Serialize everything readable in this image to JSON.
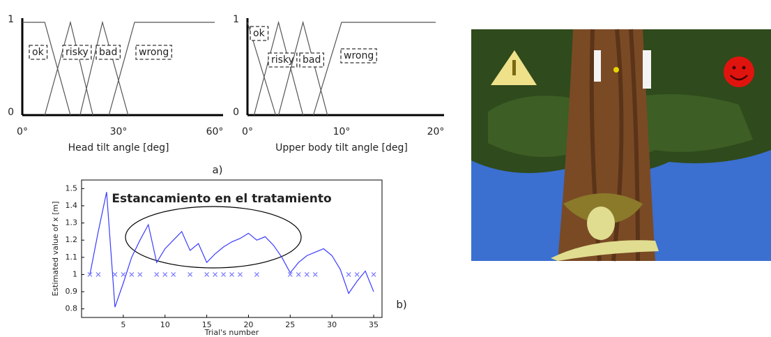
{
  "chart_data": [
    {
      "type": "line",
      "xlabel": "Head tilt angle [deg]",
      "xlim": [
        0,
        60
      ],
      "ylim": [
        0,
        1
      ],
      "xticks": [
        {
          "value": 0,
          "label": "0°"
        },
        {
          "value": 30,
          "label": "30°"
        },
        {
          "value": 60,
          "label": "60°"
        }
      ],
      "yticks": [
        0,
        1
      ],
      "series": [
        {
          "name": "ok",
          "color": "#555555",
          "x": [
            0,
            7,
            15
          ],
          "values": [
            1,
            1,
            0
          ]
        },
        {
          "name": "risky",
          "color": "#555555",
          "x": [
            7,
            15,
            22
          ],
          "values": [
            0,
            1,
            0
          ]
        },
        {
          "name": "bad",
          "color": "#555555",
          "x": [
            18,
            25,
            33
          ],
          "values": [
            0,
            1,
            0
          ]
        },
        {
          "name": "wrong",
          "color": "#555555",
          "x": [
            27,
            35,
            60
          ],
          "values": [
            0,
            1,
            1
          ]
        }
      ]
    },
    {
      "type": "line",
      "xlabel": "Upper body tilt angle [deg]",
      "xlim": [
        0,
        20
      ],
      "ylim": [
        0,
        1
      ],
      "xticks": [
        {
          "value": 0,
          "label": "0°"
        },
        {
          "value": 10,
          "label": "10°"
        },
        {
          "value": 20,
          "label": "20°"
        }
      ],
      "yticks": [
        0,
        1
      ],
      "series": [
        {
          "name": "ok",
          "color": "#555555",
          "x": [
            0,
            3
          ],
          "values": [
            1,
            0
          ]
        },
        {
          "name": "risky",
          "color": "#555555",
          "x": [
            0.7,
            3.3,
            5.9
          ],
          "values": [
            0,
            1,
            0
          ]
        },
        {
          "name": "bad",
          "color": "#555555",
          "x": [
            3.3,
            5.9,
            8.5
          ],
          "values": [
            0,
            1,
            0
          ]
        },
        {
          "name": "wrong",
          "color": "#555555",
          "x": [
            7,
            10,
            20
          ],
          "values": [
            0,
            1,
            1
          ]
        }
      ]
    },
    {
      "type": "line",
      "xlabel": "Trial's number",
      "ylabel": "Estimated value of x [m]",
      "annotation": "Estancamiento en el tratamiento",
      "xlim": [
        0,
        36
      ],
      "ylim": [
        0.75,
        1.55
      ],
      "xticks": [
        5,
        10,
        15,
        20,
        25,
        30,
        35
      ],
      "yticks": [
        0.8,
        0.9,
        1,
        1.1,
        1.2,
        1.3,
        1.4,
        1.5
      ],
      "series": [
        {
          "color": "#3a3aff",
          "x": [
            1,
            2,
            3,
            4,
            5,
            6,
            7,
            8,
            9,
            10,
            11,
            12,
            13,
            14,
            15,
            16,
            17,
            18,
            19,
            20,
            21,
            22,
            23,
            24,
            25,
            26,
            27,
            28,
            29,
            30,
            31,
            32,
            33,
            34,
            35
          ],
          "values": [
            1.0,
            1.25,
            1.48,
            0.81,
            0.95,
            1.1,
            1.2,
            1.29,
            1.07,
            1.15,
            1.2,
            1.25,
            1.14,
            1.18,
            1.07,
            1.12,
            1.16,
            1.19,
            1.21,
            1.24,
            1.2,
            1.22,
            1.17,
            1.1,
            1.01,
            1.07,
            1.11,
            1.13,
            1.15,
            1.11,
            1.03,
            0.89,
            0.96,
            1.02,
            0.9
          ]
        },
        {
          "color": "#7a7aff",
          "marker": "x",
          "x": [
            1,
            2,
            4,
            5,
            6,
            7,
            9,
            10,
            11,
            13,
            15,
            16,
            17,
            18,
            19,
            21,
            25,
            26,
            27,
            28,
            32,
            33,
            35
          ],
          "values": [
            1,
            1,
            1,
            1,
            1,
            1,
            1,
            1,
            1,
            1,
            1,
            1,
            1,
            1,
            1,
            1,
            1,
            1,
            1,
            1,
            1,
            1,
            1
          ]
        }
      ]
    }
  ],
  "panel_labels": [
    "a)",
    "b)"
  ]
}
